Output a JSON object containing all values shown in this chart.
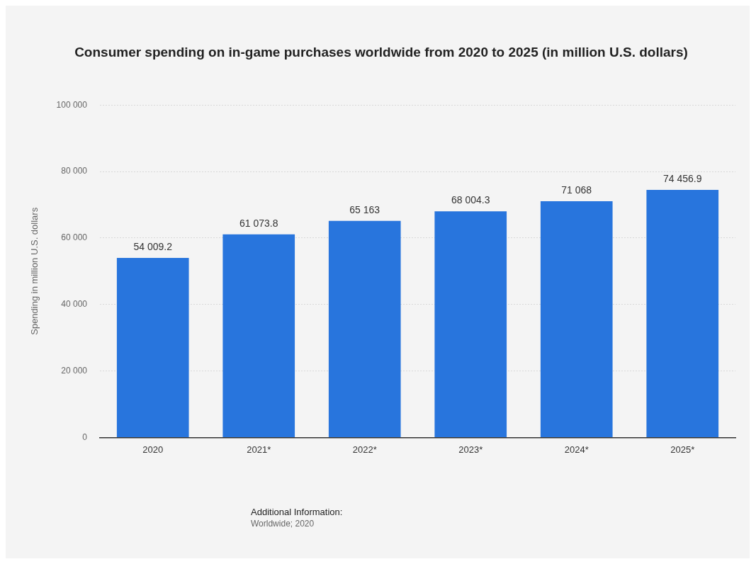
{
  "chart_data": {
    "type": "bar",
    "title": "Consumer spending on in-game purchases worldwide from 2020 to 2025 (in million U.S. dollars)",
    "ylabel": "Spending in million U.S. dollars",
    "categories": [
      "2020",
      "2021*",
      "2022*",
      "2023*",
      "2024*",
      "2025*"
    ],
    "values": [
      54009.2,
      61073.8,
      65163,
      68004.3,
      71068,
      74456.9
    ],
    "value_labels": [
      "54 009.2",
      "61 073.8",
      "65 163",
      "68 004.3",
      "71 068",
      "74 456.9"
    ],
    "color": "#2875dd",
    "ylim": [
      0,
      100000
    ],
    "yticks": [
      {
        "value": 0,
        "label": "0"
      },
      {
        "value": 20000,
        "label": "20 000"
      },
      {
        "value": 40000,
        "label": "40 000"
      },
      {
        "value": 60000,
        "label": "60 000"
      },
      {
        "value": 80000,
        "label": "80 000"
      },
      {
        "value": 100000,
        "label": "100 000"
      }
    ],
    "grid": "y",
    "legend": false,
    "annotations": [
      "Additional Information:",
      "Worldwide; 2020"
    ]
  }
}
